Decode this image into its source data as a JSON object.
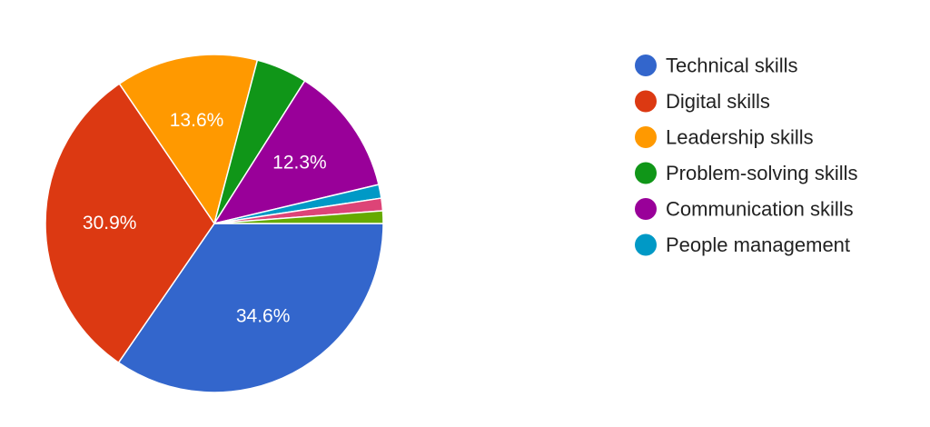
{
  "chart_data": {
    "type": "pie",
    "start_angle_deg": 0,
    "direction": "clockwise",
    "legend_position": "right",
    "slices": [
      {
        "name": "Technical skills",
        "value": 34.6,
        "label": "34.6%",
        "color": "#3366cc"
      },
      {
        "name": "Digital skills",
        "value": 30.9,
        "label": "30.9%",
        "color": "#dc3912"
      },
      {
        "name": "Leadership skills",
        "value": 13.6,
        "label": "13.6%",
        "color": "#ff9900"
      },
      {
        "name": "Problem-solving skills",
        "value": 4.9,
        "label": "",
        "color": "#109618"
      },
      {
        "name": "Communication skills",
        "value": 12.3,
        "label": "12.3%",
        "color": "#990099"
      },
      {
        "name": "People management",
        "value": 1.3,
        "label": "",
        "color": "#0099c6"
      },
      {
        "name": "",
        "value": 1.2,
        "label": "",
        "color": "#dd4477"
      },
      {
        "name": "",
        "value": 1.2,
        "label": "",
        "color": "#66aa00"
      }
    ]
  }
}
